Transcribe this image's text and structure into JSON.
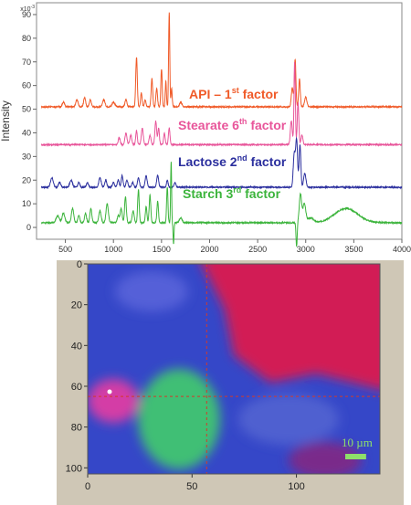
{
  "chart_data": {
    "type": "line",
    "ylabel": "Intensity",
    "y_scale_label": "x10",
    "y_scale_exp": "-3",
    "xlim": [
      200,
      4000
    ],
    "ylim": [
      -5,
      95
    ],
    "x_ticks": [
      500,
      1000,
      1500,
      2000,
      2500,
      3000,
      3500,
      4000
    ],
    "y_ticks": [
      0,
      10,
      20,
      30,
      40,
      50,
      60,
      70,
      80,
      90
    ],
    "series": [
      {
        "label_main": "API – 1",
        "label_sup": "st",
        "label_tail": " factor",
        "color": "#f05a28",
        "baseline": 51,
        "peaks": [
          {
            "x": 480,
            "h": 2,
            "w": 12
          },
          {
            "x": 620,
            "h": 3,
            "w": 12
          },
          {
            "x": 700,
            "h": 4,
            "w": 10
          },
          {
            "x": 760,
            "h": 3,
            "w": 10
          },
          {
            "x": 900,
            "h": 3,
            "w": 12
          },
          {
            "x": 1000,
            "h": 2,
            "w": 14
          },
          {
            "x": 1130,
            "h": 3,
            "w": 10
          },
          {
            "x": 1240,
            "h": 21,
            "w": 8
          },
          {
            "x": 1290,
            "h": 6,
            "w": 8
          },
          {
            "x": 1330,
            "h": 3,
            "w": 8
          },
          {
            "x": 1400,
            "h": 12,
            "w": 8
          },
          {
            "x": 1450,
            "h": 8,
            "w": 8
          },
          {
            "x": 1500,
            "h": 16,
            "w": 7
          },
          {
            "x": 1545,
            "h": 11,
            "w": 6
          },
          {
            "x": 1580,
            "h": 40,
            "w": 6
          },
          {
            "x": 1605,
            "h": 8,
            "w": 6
          },
          {
            "x": 1700,
            "h": 2,
            "w": 12
          },
          {
            "x": 2860,
            "h": 8,
            "w": 10
          },
          {
            "x": 2890,
            "h": 20,
            "w": 8
          },
          {
            "x": 2935,
            "h": 12,
            "w": 8
          },
          {
            "x": 3000,
            "h": 4,
            "w": 12
          }
        ]
      },
      {
        "label_main": "Stearate 6",
        "label_sup": "th",
        "label_tail": " factor",
        "color": "#e8559a",
        "baseline": 35,
        "peaks": [
          {
            "x": 1060,
            "h": 3,
            "w": 10
          },
          {
            "x": 1130,
            "h": 5,
            "w": 10
          },
          {
            "x": 1180,
            "h": 4,
            "w": 10
          },
          {
            "x": 1240,
            "h": 6,
            "w": 8
          },
          {
            "x": 1300,
            "h": 7,
            "w": 10
          },
          {
            "x": 1380,
            "h": 4,
            "w": 10
          },
          {
            "x": 1440,
            "h": 10,
            "w": 9
          },
          {
            "x": 1470,
            "h": 7,
            "w": 8
          },
          {
            "x": 1530,
            "h": 5,
            "w": 8
          },
          {
            "x": 1580,
            "h": 7,
            "w": 8
          },
          {
            "x": 2850,
            "h": 10,
            "w": 10
          },
          {
            "x": 2885,
            "h": 35,
            "w": 7
          },
          {
            "x": 2920,
            "h": 18,
            "w": 8
          },
          {
            "x": 2960,
            "h": 4,
            "w": 10
          }
        ]
      },
      {
        "label_main": "Lactose 2",
        "label_sup": "nd",
        "label_tail": " factor",
        "color": "#2b2f9e",
        "baseline": 17,
        "peaks": [
          {
            "x": 360,
            "h": 4,
            "w": 14
          },
          {
            "x": 440,
            "h": 2,
            "w": 12
          },
          {
            "x": 560,
            "h": 3,
            "w": 14
          },
          {
            "x": 640,
            "h": 2,
            "w": 10
          },
          {
            "x": 730,
            "h": 2,
            "w": 10
          },
          {
            "x": 860,
            "h": 4,
            "w": 12
          },
          {
            "x": 920,
            "h": 3,
            "w": 10
          },
          {
            "x": 1000,
            "h": 2,
            "w": 10
          },
          {
            "x": 1050,
            "h": 3,
            "w": 10
          },
          {
            "x": 1090,
            "h": 5,
            "w": 9
          },
          {
            "x": 1140,
            "h": 3,
            "w": 10
          },
          {
            "x": 1200,
            "h": 2,
            "w": 10
          },
          {
            "x": 1260,
            "h": 4,
            "w": 10
          },
          {
            "x": 1340,
            "h": 5,
            "w": 10
          },
          {
            "x": 1460,
            "h": 5,
            "w": 10
          },
          {
            "x": 1560,
            "h": 3,
            "w": 8
          },
          {
            "x": 1640,
            "h": 2,
            "w": 10
          },
          {
            "x": 2880,
            "h": 14,
            "w": 10
          },
          {
            "x": 2905,
            "h": 20,
            "w": 10
          },
          {
            "x": 2940,
            "h": 18,
            "w": 9
          },
          {
            "x": 2990,
            "h": 6,
            "w": 12
          }
        ]
      },
      {
        "label_main": "Starch 3",
        "label_sup": "rd",
        "label_tail": " factor",
        "color": "#3cb43c",
        "baseline": 2,
        "peaks": [
          {
            "x": 420,
            "h": 3,
            "w": 16
          },
          {
            "x": 480,
            "h": 4,
            "w": 14
          },
          {
            "x": 575,
            "h": 6,
            "w": 12
          },
          {
            "x": 640,
            "h": 3,
            "w": 10
          },
          {
            "x": 710,
            "h": 4,
            "w": 10
          },
          {
            "x": 765,
            "h": 6,
            "w": 10
          },
          {
            "x": 860,
            "h": 5,
            "w": 12
          },
          {
            "x": 935,
            "h": 8,
            "w": 12
          },
          {
            "x": 1050,
            "h": 3,
            "w": 10
          },
          {
            "x": 1080,
            "h": 6,
            "w": 10
          },
          {
            "x": 1125,
            "h": 11,
            "w": 9
          },
          {
            "x": 1205,
            "h": 5,
            "w": 10
          },
          {
            "x": 1260,
            "h": 14,
            "w": 8
          },
          {
            "x": 1340,
            "h": 7,
            "w": 8
          },
          {
            "x": 1380,
            "h": 12,
            "w": 8
          },
          {
            "x": 1460,
            "h": 9,
            "w": 8
          },
          {
            "x": 1560,
            "h": 15,
            "w": 7
          },
          {
            "x": 1600,
            "h": 26,
            "w": 5
          },
          {
            "x": 1625,
            "h": -9,
            "w": 5
          },
          {
            "x": 1700,
            "h": 2,
            "w": 14
          },
          {
            "x": 2905,
            "h": -10,
            "w": 6
          },
          {
            "x": 2945,
            "h": 12,
            "w": 12
          },
          {
            "x": 2985,
            "h": 8,
            "w": 15
          },
          {
            "x": 3050,
            "h": 2,
            "w": 30
          },
          {
            "x": 3420,
            "h": 6,
            "w": 120
          }
        ]
      }
    ]
  },
  "map": {
    "x_ticks": [
      0,
      50,
      100
    ],
    "y_ticks": [
      0,
      20,
      40,
      60,
      80,
      100
    ],
    "xlim": [
      0,
      140
    ],
    "ylim": [
      0,
      103
    ],
    "crosshair": {
      "x": 57,
      "y": 65,
      "color": "#d43a2a"
    },
    "scale_bar": {
      "label": "10 µm",
      "length_um": 10,
      "color": "#8ee06a"
    },
    "colors": {
      "api": "#d21e55",
      "stearate": "#d43ca6",
      "lactose": "#3547c8",
      "starch": "#3fbf74"
    }
  }
}
